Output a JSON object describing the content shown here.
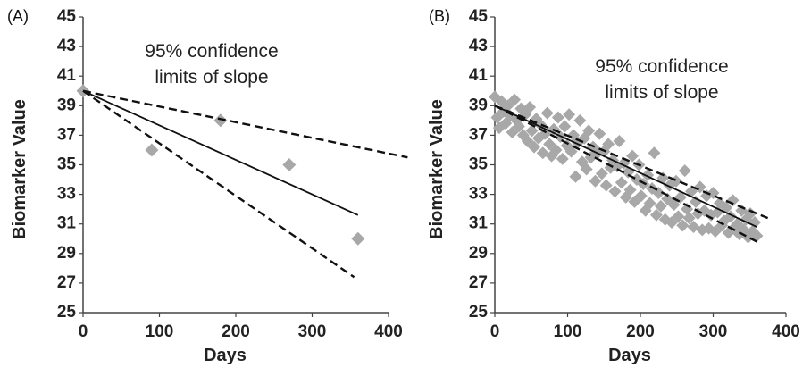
{
  "chart_data": [
    {
      "panel_label": "(A)",
      "type": "scatter",
      "xlabel": "Days",
      "ylabel": "Biomarker Value",
      "xlim": [
        0,
        400
      ],
      "ylim": [
        25,
        45
      ],
      "x_ticks": [
        "0",
        "100",
        "200",
        "300",
        "400"
      ],
      "y_ticks": [
        "25",
        "27",
        "29",
        "31",
        "33",
        "35",
        "37",
        "39",
        "41",
        "43",
        "45"
      ],
      "annotation": [
        "95% confidence",
        "limits of slope"
      ],
      "grid": false,
      "points": [
        [
          0,
          40
        ],
        [
          90,
          36
        ],
        [
          180,
          38
        ],
        [
          270,
          35
        ],
        [
          360,
          30
        ]
      ],
      "fit_line": [
        [
          0,
          40
        ],
        [
          360,
          31.6
        ]
      ],
      "confidence_upper": [
        [
          0,
          40
        ],
        [
          425,
          35.5
        ]
      ],
      "confidence_lower": [
        [
          0,
          40
        ],
        [
          355,
          27.4
        ]
      ],
      "colors": {
        "points": "#a8a8a8",
        "lines": "#111111"
      }
    },
    {
      "panel_label": "(B)",
      "type": "scatter",
      "xlabel": "Days",
      "ylabel": "Biomarker Value",
      "xlim": [
        0,
        400
      ],
      "ylim": [
        25,
        45
      ],
      "x_ticks": [
        "0",
        "100",
        "200",
        "300",
        "400"
      ],
      "y_ticks": [
        "25",
        "27",
        "29",
        "31",
        "33",
        "35",
        "37",
        "39",
        "41",
        "43",
        "45"
      ],
      "annotation": [
        "95% confidence",
        "limits of slope"
      ],
      "grid": false,
      "points": [
        [
          0,
          39.6
        ],
        [
          3,
          38.2
        ],
        [
          6,
          37.5
        ],
        [
          9,
          39.3
        ],
        [
          12,
          38.6
        ],
        [
          15,
          37.8
        ],
        [
          18,
          39.0
        ],
        [
          21,
          38.3
        ],
        [
          24,
          37.2
        ],
        [
          27,
          39.4
        ],
        [
          30,
          38.0
        ],
        [
          33,
          37.6
        ],
        [
          36,
          38.8
        ],
        [
          39,
          37.0
        ],
        [
          42,
          38.4
        ],
        [
          45,
          36.6
        ],
        [
          48,
          38.9
        ],
        [
          51,
          37.3
        ],
        [
          54,
          36.2
        ],
        [
          57,
          38.1
        ],
        [
          60,
          36.8
        ],
        [
          63,
          37.7
        ],
        [
          66,
          35.8
        ],
        [
          69,
          37.1
        ],
        [
          72,
          38.5
        ],
        [
          75,
          36.4
        ],
        [
          78,
          35.6
        ],
        [
          81,
          37.4
        ],
        [
          84,
          36.0
        ],
        [
          87,
          38.2
        ],
        [
          90,
          36.9
        ],
        [
          93,
          35.4
        ],
        [
          96,
          37.6
        ],
        [
          99,
          36.3
        ],
        [
          102,
          38.4
        ],
        [
          105,
          35.9
        ],
        [
          108,
          37.0
        ],
        [
          111,
          34.2
        ],
        [
          114,
          36.5
        ],
        [
          117,
          38.0
        ],
        [
          120,
          35.2
        ],
        [
          123,
          36.8
        ],
        [
          126,
          34.7
        ],
        [
          129,
          37.3
        ],
        [
          132,
          35.5
        ],
        [
          135,
          36.2
        ],
        [
          138,
          33.9
        ],
        [
          141,
          35.8
        ],
        [
          144,
          37.1
        ],
        [
          147,
          34.4
        ],
        [
          150,
          35.9
        ],
        [
          153,
          33.6
        ],
        [
          156,
          36.4
        ],
        [
          159,
          34.8
        ],
        [
          162,
          35.3
        ],
        [
          165,
          33.2
        ],
        [
          168,
          34.9
        ],
        [
          171,
          36.6
        ],
        [
          174,
          33.8
        ],
        [
          177,
          35.1
        ],
        [
          180,
          32.8
        ],
        [
          183,
          34.5
        ],
        [
          186,
          33.3
        ],
        [
          189,
          35.6
        ],
        [
          192,
          32.5
        ],
        [
          195,
          34.0
        ],
        [
          198,
          35.0
        ],
        [
          201,
          32.9
        ],
        [
          204,
          33.7
        ],
        [
          207,
          31.9
        ],
        [
          210,
          34.3
        ],
        [
          213,
          32.4
        ],
        [
          216,
          33.4
        ],
        [
          219,
          35.8
        ],
        [
          222,
          31.6
        ],
        [
          225,
          33.1
        ],
        [
          228,
          32.2
        ],
        [
          231,
          34.1
        ],
        [
          234,
          31.3
        ],
        [
          237,
          32.7
        ],
        [
          240,
          33.6
        ],
        [
          243,
          31.1
        ],
        [
          246,
          32.3
        ],
        [
          249,
          33.9
        ],
        [
          252,
          31.5
        ],
        [
          255,
          32.8
        ],
        [
          258,
          30.9
        ],
        [
          261,
          34.6
        ],
        [
          264,
          32.0
        ],
        [
          267,
          31.4
        ],
        [
          270,
          33.2
        ],
        [
          273,
          30.8
        ],
        [
          276,
          32.5
        ],
        [
          279,
          31.7
        ],
        [
          282,
          33.5
        ],
        [
          285,
          30.6
        ],
        [
          288,
          31.9
        ],
        [
          291,
          32.9
        ],
        [
          294,
          30.7
        ],
        [
          297,
          31.6
        ],
        [
          300,
          33.1
        ],
        [
          303,
          30.5
        ],
        [
          306,
          31.8
        ],
        [
          309,
          32.4
        ],
        [
          312,
          30.9
        ],
        [
          315,
          31.2
        ],
        [
          318,
          32.1
        ],
        [
          321,
          30.4
        ],
        [
          324,
          31.5
        ],
        [
          327,
          32.6
        ],
        [
          330,
          30.8
        ],
        [
          333,
          31.0
        ],
        [
          336,
          30.3
        ],
        [
          339,
          31.9
        ],
        [
          342,
          30.6
        ],
        [
          345,
          31.3
        ],
        [
          348,
          30.1
        ],
        [
          351,
          31.7
        ],
        [
          354,
          30.5
        ],
        [
          357,
          31.1
        ],
        [
          360,
          30.2
        ]
      ],
      "fit_line": [
        [
          0,
          39
        ],
        [
          360,
          30.8
        ]
      ],
      "confidence_upper": [
        [
          0,
          39
        ],
        [
          375,
          31.4
        ]
      ],
      "confidence_lower": [
        [
          0,
          39
        ],
        [
          360,
          29.8
        ]
      ],
      "colors": {
        "points": "#a8a8a8",
        "lines": "#111111"
      }
    }
  ]
}
